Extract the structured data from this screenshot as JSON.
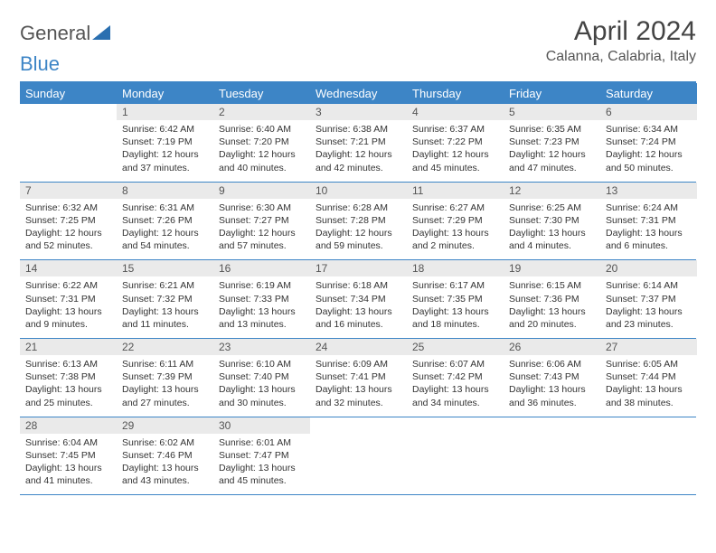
{
  "logo": {
    "text1": "General",
    "text2": "Blue",
    "color1": "#666666",
    "color2": "#3d85c6"
  },
  "title": "April 2024",
  "location": "Calanna, Calabria, Italy",
  "colors": {
    "accent": "#3d85c6",
    "headerText": "#ffffff",
    "daynumBg": "#eaeaea"
  },
  "weekdays": [
    "Sunday",
    "Monday",
    "Tuesday",
    "Wednesday",
    "Thursday",
    "Friday",
    "Saturday"
  ],
  "weeks": [
    [
      {
        "n": "",
        "sr": "",
        "ss": "",
        "dl": ""
      },
      {
        "n": "1",
        "sr": "6:42 AM",
        "ss": "7:19 PM",
        "dl": "12 hours and 37 minutes."
      },
      {
        "n": "2",
        "sr": "6:40 AM",
        "ss": "7:20 PM",
        "dl": "12 hours and 40 minutes."
      },
      {
        "n": "3",
        "sr": "6:38 AM",
        "ss": "7:21 PM",
        "dl": "12 hours and 42 minutes."
      },
      {
        "n": "4",
        "sr": "6:37 AM",
        "ss": "7:22 PM",
        "dl": "12 hours and 45 minutes."
      },
      {
        "n": "5",
        "sr": "6:35 AM",
        "ss": "7:23 PM",
        "dl": "12 hours and 47 minutes."
      },
      {
        "n": "6",
        "sr": "6:34 AM",
        "ss": "7:24 PM",
        "dl": "12 hours and 50 minutes."
      }
    ],
    [
      {
        "n": "7",
        "sr": "6:32 AM",
        "ss": "7:25 PM",
        "dl": "12 hours and 52 minutes."
      },
      {
        "n": "8",
        "sr": "6:31 AM",
        "ss": "7:26 PM",
        "dl": "12 hours and 54 minutes."
      },
      {
        "n": "9",
        "sr": "6:30 AM",
        "ss": "7:27 PM",
        "dl": "12 hours and 57 minutes."
      },
      {
        "n": "10",
        "sr": "6:28 AM",
        "ss": "7:28 PM",
        "dl": "12 hours and 59 minutes."
      },
      {
        "n": "11",
        "sr": "6:27 AM",
        "ss": "7:29 PM",
        "dl": "13 hours and 2 minutes."
      },
      {
        "n": "12",
        "sr": "6:25 AM",
        "ss": "7:30 PM",
        "dl": "13 hours and 4 minutes."
      },
      {
        "n": "13",
        "sr": "6:24 AM",
        "ss": "7:31 PM",
        "dl": "13 hours and 6 minutes."
      }
    ],
    [
      {
        "n": "14",
        "sr": "6:22 AM",
        "ss": "7:31 PM",
        "dl": "13 hours and 9 minutes."
      },
      {
        "n": "15",
        "sr": "6:21 AM",
        "ss": "7:32 PM",
        "dl": "13 hours and 11 minutes."
      },
      {
        "n": "16",
        "sr": "6:19 AM",
        "ss": "7:33 PM",
        "dl": "13 hours and 13 minutes."
      },
      {
        "n": "17",
        "sr": "6:18 AM",
        "ss": "7:34 PM",
        "dl": "13 hours and 16 minutes."
      },
      {
        "n": "18",
        "sr": "6:17 AM",
        "ss": "7:35 PM",
        "dl": "13 hours and 18 minutes."
      },
      {
        "n": "19",
        "sr": "6:15 AM",
        "ss": "7:36 PM",
        "dl": "13 hours and 20 minutes."
      },
      {
        "n": "20",
        "sr": "6:14 AM",
        "ss": "7:37 PM",
        "dl": "13 hours and 23 minutes."
      }
    ],
    [
      {
        "n": "21",
        "sr": "6:13 AM",
        "ss": "7:38 PM",
        "dl": "13 hours and 25 minutes."
      },
      {
        "n": "22",
        "sr": "6:11 AM",
        "ss": "7:39 PM",
        "dl": "13 hours and 27 minutes."
      },
      {
        "n": "23",
        "sr": "6:10 AM",
        "ss": "7:40 PM",
        "dl": "13 hours and 30 minutes."
      },
      {
        "n": "24",
        "sr": "6:09 AM",
        "ss": "7:41 PM",
        "dl": "13 hours and 32 minutes."
      },
      {
        "n": "25",
        "sr": "6:07 AM",
        "ss": "7:42 PM",
        "dl": "13 hours and 34 minutes."
      },
      {
        "n": "26",
        "sr": "6:06 AM",
        "ss": "7:43 PM",
        "dl": "13 hours and 36 minutes."
      },
      {
        "n": "27",
        "sr": "6:05 AM",
        "ss": "7:44 PM",
        "dl": "13 hours and 38 minutes."
      }
    ],
    [
      {
        "n": "28",
        "sr": "6:04 AM",
        "ss": "7:45 PM",
        "dl": "13 hours and 41 minutes."
      },
      {
        "n": "29",
        "sr": "6:02 AM",
        "ss": "7:46 PM",
        "dl": "13 hours and 43 minutes."
      },
      {
        "n": "30",
        "sr": "6:01 AM",
        "ss": "7:47 PM",
        "dl": "13 hours and 45 minutes."
      },
      {
        "n": "",
        "sr": "",
        "ss": "",
        "dl": ""
      },
      {
        "n": "",
        "sr": "",
        "ss": "",
        "dl": ""
      },
      {
        "n": "",
        "sr": "",
        "ss": "",
        "dl": ""
      },
      {
        "n": "",
        "sr": "",
        "ss": "",
        "dl": ""
      }
    ]
  ],
  "labels": {
    "sunrise": "Sunrise:",
    "sunset": "Sunset:",
    "daylight": "Daylight:"
  }
}
